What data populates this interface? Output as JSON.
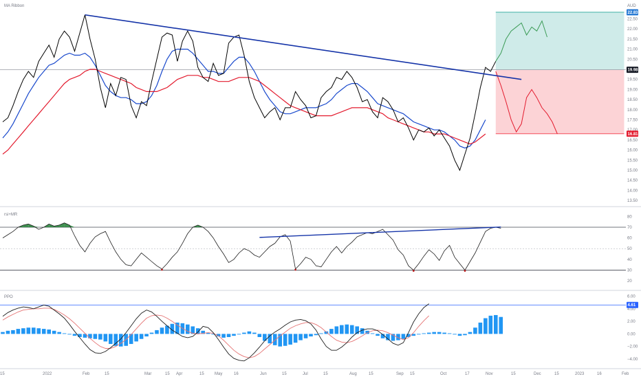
{
  "chart_data": [
    {
      "type": "line",
      "pane": "price",
      "title": "MA Ribbon",
      "ylabel": "AUD",
      "yticks": [
        23.0,
        22.5,
        22.0,
        21.5,
        21.0,
        20.5,
        20.0,
        19.5,
        19.0,
        18.5,
        18.0,
        17.5,
        17.0,
        16.5,
        16.0,
        15.5,
        15.0,
        14.5,
        14.0,
        13.5
      ],
      "ylim": [
        13.3,
        23.3
      ],
      "x_labels": [
        "15",
        "2022",
        "Feb",
        "15",
        "Mar",
        "15",
        "Apr",
        "15",
        "May",
        "16",
        "Jun",
        "15",
        "Jul",
        "15",
        "Aug",
        "15",
        "Sep",
        "15",
        "Oct",
        "17",
        "Nov",
        "15",
        "Dec",
        "15",
        "2023",
        "16",
        "Feb"
      ],
      "series": [
        {
          "name": "price",
          "color": "#000000",
          "values": [
            17.4,
            17.6,
            18.2,
            18.9,
            19.5,
            19.9,
            19.6,
            20.4,
            20.8,
            21.2,
            20.6,
            21.5,
            21.9,
            21.6,
            20.9,
            21.8,
            22.7,
            21.5,
            20.5,
            19.1,
            18.1,
            19.3,
            18.7,
            19.6,
            19.5,
            18.2,
            17.6,
            18.4,
            18.2,
            19.4,
            20.5,
            21.6,
            21.8,
            21.7,
            20.4,
            21.4,
            21.9,
            21.4,
            20.1,
            19.6,
            19.4,
            20.3,
            19.7,
            19.8,
            21.3,
            21.6,
            21.7,
            20.7,
            19.4,
            18.6,
            18.1,
            17.6,
            17.9,
            18.1,
            17.5,
            18.1,
            18.1,
            18.9,
            18.5,
            18.2,
            17.6,
            17.7,
            18.6,
            18.9,
            19.1,
            19.6,
            19.5,
            19.9,
            19.6,
            19.1,
            18.4,
            18.5,
            17.9,
            17.6,
            18.6,
            18.4,
            18.0,
            17.4,
            17.6,
            17.1,
            16.5,
            17.0,
            16.9,
            17.1,
            16.7,
            17.0,
            16.6,
            16.2,
            15.5,
            15.0,
            15.8,
            16.6,
            17.8,
            19.1,
            20.1,
            19.9,
            20.4,
            20.8,
            21.5,
            21.9,
            22.1,
            22.3,
            21.7,
            22.1,
            21.9,
            22.4,
            21.6
          ],
          "tail_color": "#3b9b56",
          "tail_start": 96
        },
        {
          "name": "ma_blue",
          "color": "#1848cc",
          "values": [
            16.6,
            16.9,
            17.3,
            17.8,
            18.3,
            18.8,
            19.2,
            19.6,
            19.9,
            20.2,
            20.3,
            20.5,
            20.7,
            20.8,
            20.7,
            20.7,
            20.8,
            20.6,
            20.2,
            19.7,
            19.2,
            18.9,
            18.7,
            18.6,
            18.6,
            18.5,
            18.3,
            18.3,
            18.4,
            18.7,
            19.2,
            19.9,
            20.5,
            20.9,
            21.0,
            21.0,
            21.0,
            20.8,
            20.5,
            20.2,
            19.9,
            19.9,
            19.8,
            19.8,
            20.1,
            20.4,
            20.6,
            20.6,
            20.3,
            19.9,
            19.4,
            18.9,
            18.5,
            18.2,
            17.9,
            17.8,
            17.8,
            17.9,
            18.0,
            18.1,
            18.1,
            18.1,
            18.2,
            18.3,
            18.5,
            18.8,
            19.0,
            19.2,
            19.3,
            19.3,
            19.1,
            18.9,
            18.6,
            18.3,
            18.2,
            18.1,
            18.0,
            17.9,
            17.8,
            17.6,
            17.4,
            17.3,
            17.2,
            17.1,
            17.0,
            17.0,
            16.9,
            16.7,
            16.5,
            16.2,
            16.1,
            16.2,
            16.5,
            17.0,
            17.5
          ],
          "end_index": 94
        },
        {
          "name": "ma_red",
          "color": "#e31a2d",
          "values": [
            15.8,
            16.0,
            16.3,
            16.6,
            16.9,
            17.2,
            17.5,
            17.8,
            18.1,
            18.4,
            18.7,
            19.0,
            19.3,
            19.5,
            19.6,
            19.7,
            19.9,
            20.0,
            20.0,
            19.9,
            19.8,
            19.7,
            19.6,
            19.5,
            19.4,
            19.3,
            19.1,
            19.0,
            18.9,
            18.9,
            18.9,
            19.0,
            19.1,
            19.3,
            19.5,
            19.6,
            19.7,
            19.7,
            19.7,
            19.6,
            19.6,
            19.5,
            19.4,
            19.4,
            19.4,
            19.5,
            19.6,
            19.6,
            19.6,
            19.5,
            19.4,
            19.2,
            19.0,
            18.8,
            18.6,
            18.4,
            18.2,
            18.1,
            18.0,
            17.9,
            17.8,
            17.7,
            17.7,
            17.7,
            17.7,
            17.8,
            17.9,
            18.0,
            18.1,
            18.1,
            18.1,
            18.1,
            18.0,
            17.9,
            17.8,
            17.6,
            17.5,
            17.4,
            17.3,
            17.2,
            17.1,
            17.0,
            16.9,
            16.9,
            16.8,
            16.8,
            16.8,
            16.7,
            16.6,
            16.5,
            16.4,
            16.3,
            16.4,
            16.6,
            16.8
          ],
          "end_index": 94
        }
      ],
      "red_tail": [
        19.9,
        19.2,
        18.4,
        17.5,
        16.9,
        17.3,
        18.6,
        19.0,
        18.6,
        18.1,
        17.8,
        17.4,
        16.8
      ],
      "trendline": {
        "x": [
          16,
          101
        ],
        "y": [
          22.7,
          19.5
        ],
        "color": "#1433a8"
      },
      "reference_line": 19.98,
      "zones": {
        "target_top": 22.83,
        "entry": 19.98,
        "stop": 16.81,
        "x_range": [
          96,
          121
        ]
      },
      "price_tags": [
        {
          "value": 22.83,
          "label": "22.83",
          "color": "#2a7bd4"
        },
        {
          "value": 19.98,
          "label": "19.98",
          "color": "#131722"
        },
        {
          "value": 16.81,
          "label": "16.81",
          "color": "#e31a2d"
        }
      ]
    },
    {
      "type": "line",
      "pane": "rsi",
      "title": "rsi+MR",
      "yticks": [
        80,
        70,
        60,
        50,
        40,
        30,
        20
      ],
      "ylim": [
        13,
        86
      ],
      "hlines": [
        70,
        30
      ],
      "midline": 50,
      "values": [
        60,
        63,
        66,
        70,
        72,
        73,
        71,
        68,
        70,
        73,
        71,
        72,
        74,
        72,
        62,
        53,
        47,
        55,
        61,
        64,
        66,
        56,
        47,
        40,
        35,
        34,
        40,
        46,
        42,
        38,
        34,
        31,
        36,
        42,
        47,
        55,
        64,
        70,
        72,
        70,
        66,
        60,
        52,
        45,
        37,
        40,
        46,
        50,
        48,
        44,
        42,
        47,
        52,
        55,
        61,
        63,
        57,
        31,
        36,
        42,
        40,
        34,
        33,
        40,
        47,
        52,
        46,
        52,
        56,
        61,
        63,
        65,
        64,
        66,
        68,
        63,
        58,
        49,
        44,
        34,
        30,
        36,
        43,
        49,
        45,
        39,
        48,
        53,
        42,
        36,
        30,
        38,
        46,
        56,
        66,
        69,
        70,
        69
      ],
      "trendline": {
        "x": [
          50,
          97
        ],
        "y": [
          60.5,
          70.2
        ]
      },
      "overbought_fill": "#1e7d32"
    },
    {
      "type": "bar",
      "pane": "ppo",
      "title": "PPO",
      "yticks": [
        6.0,
        4.0,
        2.0,
        0.0,
        -2.0,
        -4.0
      ],
      "ytick_labels": [
        "6.00",
        "4.00",
        "2.00",
        "0.00",
        "−2.00",
        "−4.00"
      ],
      "ylim": [
        -5.2,
        6.6
      ],
      "hline": 4.61,
      "tag": {
        "label": "4.61",
        "color": "#2962ff"
      },
      "histogram_color": "#2196f3",
      "histogram": [
        0.3,
        0.5,
        0.6,
        0.8,
        0.9,
        1.0,
        1.0,
        0.9,
        0.8,
        0.7,
        0.5,
        0.3,
        0.1,
        -0.1,
        -0.3,
        -0.5,
        -0.6,
        -0.7,
        -0.8,
        -0.9,
        -1.2,
        -1.6,
        -1.9,
        -2.0,
        -1.9,
        -1.6,
        -1.2,
        -0.8,
        -0.4,
        0.2,
        0.6,
        1.0,
        1.3,
        1.6,
        1.8,
        1.7,
        1.5,
        1.2,
        0.9,
        0.5,
        0.2,
        -0.1,
        -0.4,
        -0.6,
        -0.5,
        -0.3,
        -0.1,
        0.2,
        0.4,
        0.2,
        -0.5,
        -1.1,
        -1.5,
        -1.8,
        -2.0,
        -1.9,
        -1.7,
        -1.4,
        -1.0,
        -0.7,
        -0.4,
        -0.2,
        0.1,
        0.4,
        0.8,
        1.2,
        1.4,
        1.5,
        1.4,
        1.2,
        0.9,
        0.5,
        0.1,
        -0.3,
        -0.7,
        -1.0,
        -1.1,
        -1.0,
        -0.8,
        -0.5,
        -0.3,
        -0.1,
        0.1,
        0.2,
        0.3,
        0.3,
        0.2,
        0.1,
        -0.1,
        -0.3,
        -0.2,
        0.3,
        1.0,
        1.8,
        2.5,
        2.9,
        3.0,
        2.7
      ],
      "ppo_line": [
        2.8,
        3.4,
        3.8,
        4.1,
        4.3,
        4.2,
        4.0,
        4.3,
        4.6,
        4.4,
        3.8,
        3.2,
        2.5,
        1.5,
        0.4,
        -0.6,
        -1.6,
        -2.5,
        -3.0,
        -3.1,
        -2.8,
        -2.2,
        -1.5,
        -0.8,
        0.2,
        1.3,
        2.4,
        3.3,
        3.8,
        3.5,
        2.8,
        2.0,
        1.3,
        0.6,
        0.1,
        -0.4,
        -0.6,
        -0.4,
        0.3,
        1.2,
        1.0,
        0.2,
        -0.9,
        -2.1,
        -3.2,
        -3.9,
        -4.2,
        -4.3,
        -3.8,
        -3.0,
        -2.1,
        -1.1,
        -0.3,
        0.3,
        0.8,
        1.4,
        1.9,
        2.2,
        2.3,
        2.1,
        1.6,
        0.6,
        -0.8,
        -2.0,
        -2.6,
        -2.6,
        -2.1,
        -1.4,
        -0.5,
        0.2,
        0.6,
        0.8,
        0.8,
        0.5,
        -0.1,
        -0.8,
        -1.5,
        -1.8,
        -1.4,
        0.2,
        1.9,
        3.2,
        4.2,
        4.8
      ],
      "signal_line": [
        2.2,
        2.7,
        3.1,
        3.5,
        3.8,
        3.9,
        4.0,
        4.0,
        4.1,
        4.1,
        3.9,
        3.5,
        3.0,
        2.4,
        1.7,
        0.9,
        0.1,
        -0.7,
        -1.4,
        -2.0,
        -2.3,
        -2.3,
        -2.0,
        -1.5,
        -0.9,
        -0.1,
        0.8,
        1.7,
        2.5,
        2.9,
        3.0,
        2.9,
        2.5,
        2.0,
        1.4,
        0.9,
        0.4,
        0.1,
        0.0,
        0.1,
        0.2,
        0.1,
        -0.3,
        -1.0,
        -1.8,
        -2.6,
        -3.2,
        -3.6,
        -3.8,
        -3.6,
        -3.1,
        -2.4,
        -1.7,
        -1.0,
        -0.3,
        0.3,
        0.9,
        1.3,
        1.6,
        1.8,
        1.8,
        1.5,
        1.0,
        0.3,
        -0.4,
        -1.0,
        -1.3,
        -1.4,
        -1.2,
        -0.8,
        -0.3,
        0.2,
        0.5,
        0.6,
        0.5,
        0.2,
        -0.2,
        -0.6,
        -0.9,
        -0.6,
        0.2,
        1.2,
        2.1,
        2.9
      ]
    }
  ]
}
